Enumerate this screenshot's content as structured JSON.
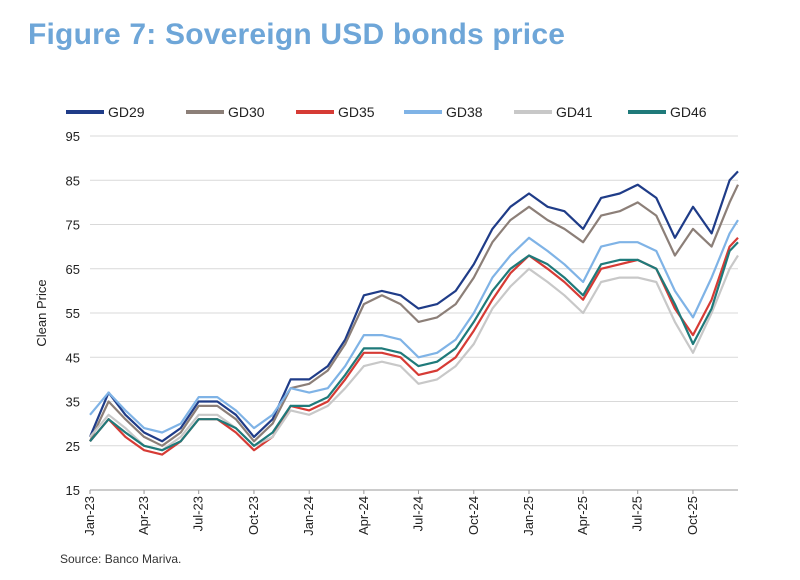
{
  "title": "Figure 7: Sovereign USD bonds price",
  "source": "Source: Banco Mariva.",
  "chart_data": {
    "type": "line",
    "ylabel": "Clean Price",
    "xlabel": "",
    "ylim": [
      15,
      95
    ],
    "yticks": [
      15,
      25,
      35,
      45,
      55,
      65,
      75,
      85,
      95
    ],
    "xlim": [
      "2023-01-01",
      "2025-12-15"
    ],
    "xticks": [
      {
        "date": "2023-01-01",
        "label": "Jan-23"
      },
      {
        "date": "2023-04-01",
        "label": "Apr-23"
      },
      {
        "date": "2023-07-01",
        "label": "Jul-23"
      },
      {
        "date": "2023-10-01",
        "label": "Oct-23"
      },
      {
        "date": "2024-01-01",
        "label": "Jan-24"
      },
      {
        "date": "2024-04-01",
        "label": "Apr-24"
      },
      {
        "date": "2024-07-01",
        "label": "Jul-24"
      },
      {
        "date": "2024-10-01",
        "label": "Oct-24"
      },
      {
        "date": "2025-01-01",
        "label": "Jan-25"
      },
      {
        "date": "2025-04-01",
        "label": "Apr-25"
      },
      {
        "date": "2025-07-01",
        "label": "Jul-25"
      },
      {
        "date": "2025-10-01",
        "label": "Oct-25"
      }
    ],
    "grid": "horizontal",
    "legend": "top",
    "series": [
      {
        "name": "GD29",
        "color": "#1f3c88",
        "points": [
          [
            "2023-01-01",
            27
          ],
          [
            "2023-02-01",
            37
          ],
          [
            "2023-03-01",
            32
          ],
          [
            "2023-04-01",
            28
          ],
          [
            "2023-05-01",
            26
          ],
          [
            "2023-06-01",
            29
          ],
          [
            "2023-07-01",
            35
          ],
          [
            "2023-08-01",
            35
          ],
          [
            "2023-09-01",
            32
          ],
          [
            "2023-10-01",
            27
          ],
          [
            "2023-11-01",
            31
          ],
          [
            "2023-12-01",
            40
          ],
          [
            "2024-01-01",
            40
          ],
          [
            "2024-02-01",
            43
          ],
          [
            "2024-03-01",
            49
          ],
          [
            "2024-04-01",
            59
          ],
          [
            "2024-05-01",
            60
          ],
          [
            "2024-06-01",
            59
          ],
          [
            "2024-07-01",
            56
          ],
          [
            "2024-08-01",
            57
          ],
          [
            "2024-09-01",
            60
          ],
          [
            "2024-10-01",
            66
          ],
          [
            "2024-11-01",
            74
          ],
          [
            "2024-12-01",
            79
          ],
          [
            "2025-01-01",
            82
          ],
          [
            "2025-02-01",
            79
          ],
          [
            "2025-03-01",
            78
          ],
          [
            "2025-04-01",
            74
          ],
          [
            "2025-05-01",
            81
          ],
          [
            "2025-06-01",
            82
          ],
          [
            "2025-07-01",
            84
          ],
          [
            "2025-08-01",
            81
          ],
          [
            "2025-09-01",
            72
          ],
          [
            "2025-10-01",
            79
          ],
          [
            "2025-11-01",
            73
          ],
          [
            "2025-12-01",
            85
          ],
          [
            "2025-12-15",
            87
          ]
        ]
      },
      {
        "name": "GD30",
        "color": "#8c7f78",
        "points": [
          [
            "2023-01-01",
            26
          ],
          [
            "2023-02-01",
            35
          ],
          [
            "2023-03-01",
            31
          ],
          [
            "2023-04-01",
            27
          ],
          [
            "2023-05-01",
            25
          ],
          [
            "2023-06-01",
            28
          ],
          [
            "2023-07-01",
            34
          ],
          [
            "2023-08-01",
            34
          ],
          [
            "2023-09-01",
            31
          ],
          [
            "2023-10-01",
            26
          ],
          [
            "2023-11-01",
            30
          ],
          [
            "2023-12-01",
            38
          ],
          [
            "2024-01-01",
            39
          ],
          [
            "2024-02-01",
            42
          ],
          [
            "2024-03-01",
            48
          ],
          [
            "2024-04-01",
            57
          ],
          [
            "2024-05-01",
            59
          ],
          [
            "2024-06-01",
            57
          ],
          [
            "2024-07-01",
            53
          ],
          [
            "2024-08-01",
            54
          ],
          [
            "2024-09-01",
            57
          ],
          [
            "2024-10-01",
            63
          ],
          [
            "2024-11-01",
            71
          ],
          [
            "2024-12-01",
            76
          ],
          [
            "2025-01-01",
            79
          ],
          [
            "2025-02-01",
            76
          ],
          [
            "2025-03-01",
            74
          ],
          [
            "2025-04-01",
            71
          ],
          [
            "2025-05-01",
            77
          ],
          [
            "2025-06-01",
            78
          ],
          [
            "2025-07-01",
            80
          ],
          [
            "2025-08-01",
            77
          ],
          [
            "2025-09-01",
            68
          ],
          [
            "2025-10-01",
            74
          ],
          [
            "2025-11-01",
            70
          ],
          [
            "2025-12-01",
            80
          ],
          [
            "2025-12-15",
            84
          ]
        ]
      },
      {
        "name": "GD35",
        "color": "#d63b35",
        "points": [
          [
            "2023-01-01",
            26
          ],
          [
            "2023-02-01",
            31
          ],
          [
            "2023-03-01",
            27
          ],
          [
            "2023-04-01",
            24
          ],
          [
            "2023-05-01",
            23
          ],
          [
            "2023-06-01",
            26
          ],
          [
            "2023-07-01",
            31
          ],
          [
            "2023-08-01",
            31
          ],
          [
            "2023-09-01",
            28
          ],
          [
            "2023-10-01",
            24
          ],
          [
            "2023-11-01",
            27
          ],
          [
            "2023-12-01",
            34
          ],
          [
            "2024-01-01",
            33
          ],
          [
            "2024-02-01",
            35
          ],
          [
            "2024-03-01",
            40
          ],
          [
            "2024-04-01",
            46
          ],
          [
            "2024-05-01",
            46
          ],
          [
            "2024-06-01",
            45
          ],
          [
            "2024-07-01",
            41
          ],
          [
            "2024-08-01",
            42
          ],
          [
            "2024-09-01",
            45
          ],
          [
            "2024-10-01",
            51
          ],
          [
            "2024-11-01",
            58
          ],
          [
            "2024-12-01",
            64
          ],
          [
            "2025-01-01",
            68
          ],
          [
            "2025-02-01",
            65
          ],
          [
            "2025-03-01",
            62
          ],
          [
            "2025-04-01",
            58
          ],
          [
            "2025-05-01",
            65
          ],
          [
            "2025-06-01",
            66
          ],
          [
            "2025-07-01",
            67
          ],
          [
            "2025-08-01",
            65
          ],
          [
            "2025-09-01",
            56
          ],
          [
            "2025-10-01",
            50
          ],
          [
            "2025-11-01",
            58
          ],
          [
            "2025-12-01",
            70
          ],
          [
            "2025-12-15",
            72
          ]
        ]
      },
      {
        "name": "GD38",
        "color": "#7fb3e6",
        "points": [
          [
            "2023-01-01",
            32
          ],
          [
            "2023-02-01",
            37
          ],
          [
            "2023-03-01",
            33
          ],
          [
            "2023-04-01",
            29
          ],
          [
            "2023-05-01",
            28
          ],
          [
            "2023-06-01",
            30
          ],
          [
            "2023-07-01",
            36
          ],
          [
            "2023-08-01",
            36
          ],
          [
            "2023-09-01",
            33
          ],
          [
            "2023-10-01",
            29
          ],
          [
            "2023-11-01",
            32
          ],
          [
            "2023-12-01",
            38
          ],
          [
            "2024-01-01",
            37
          ],
          [
            "2024-02-01",
            38
          ],
          [
            "2024-03-01",
            43
          ],
          [
            "2024-04-01",
            50
          ],
          [
            "2024-05-01",
            50
          ],
          [
            "2024-06-01",
            49
          ],
          [
            "2024-07-01",
            45
          ],
          [
            "2024-08-01",
            46
          ],
          [
            "2024-09-01",
            49
          ],
          [
            "2024-10-01",
            55
          ],
          [
            "2024-11-01",
            63
          ],
          [
            "2024-12-01",
            68
          ],
          [
            "2025-01-01",
            72
          ],
          [
            "2025-02-01",
            69
          ],
          [
            "2025-03-01",
            66
          ],
          [
            "2025-04-01",
            62
          ],
          [
            "2025-05-01",
            70
          ],
          [
            "2025-06-01",
            71
          ],
          [
            "2025-07-01",
            71
          ],
          [
            "2025-08-01",
            69
          ],
          [
            "2025-09-01",
            60
          ],
          [
            "2025-10-01",
            54
          ],
          [
            "2025-11-01",
            63
          ],
          [
            "2025-12-01",
            73
          ],
          [
            "2025-12-15",
            76
          ]
        ]
      },
      {
        "name": "GD41",
        "color": "#c8c8c8",
        "points": [
          [
            "2023-01-01",
            27
          ],
          [
            "2023-02-01",
            32
          ],
          [
            "2023-03-01",
            29
          ],
          [
            "2023-04-01",
            25
          ],
          [
            "2023-05-01",
            24
          ],
          [
            "2023-06-01",
            27
          ],
          [
            "2023-07-01",
            32
          ],
          [
            "2023-08-01",
            32
          ],
          [
            "2023-09-01",
            29
          ],
          [
            "2023-10-01",
            25
          ],
          [
            "2023-11-01",
            27
          ],
          [
            "2023-12-01",
            33
          ],
          [
            "2024-01-01",
            32
          ],
          [
            "2024-02-01",
            34
          ],
          [
            "2024-03-01",
            38
          ],
          [
            "2024-04-01",
            43
          ],
          [
            "2024-05-01",
            44
          ],
          [
            "2024-06-01",
            43
          ],
          [
            "2024-07-01",
            39
          ],
          [
            "2024-08-01",
            40
          ],
          [
            "2024-09-01",
            43
          ],
          [
            "2024-10-01",
            48
          ],
          [
            "2024-11-01",
            56
          ],
          [
            "2024-12-01",
            61
          ],
          [
            "2025-01-01",
            65
          ],
          [
            "2025-02-01",
            62
          ],
          [
            "2025-03-01",
            59
          ],
          [
            "2025-04-01",
            55
          ],
          [
            "2025-05-01",
            62
          ],
          [
            "2025-06-01",
            63
          ],
          [
            "2025-07-01",
            63
          ],
          [
            "2025-08-01",
            62
          ],
          [
            "2025-09-01",
            53
          ],
          [
            "2025-10-01",
            46
          ],
          [
            "2025-11-01",
            55
          ],
          [
            "2025-12-01",
            65
          ],
          [
            "2025-12-15",
            68
          ]
        ]
      },
      {
        "name": "GD46",
        "color": "#1f7a7a",
        "points": [
          [
            "2023-01-01",
            26
          ],
          [
            "2023-02-01",
            31
          ],
          [
            "2023-03-01",
            28
          ],
          [
            "2023-04-01",
            25
          ],
          [
            "2023-05-01",
            24
          ],
          [
            "2023-06-01",
            26
          ],
          [
            "2023-07-01",
            31
          ],
          [
            "2023-08-01",
            31
          ],
          [
            "2023-09-01",
            29
          ],
          [
            "2023-10-01",
            25
          ],
          [
            "2023-11-01",
            28
          ],
          [
            "2023-12-01",
            34
          ],
          [
            "2024-01-01",
            34
          ],
          [
            "2024-02-01",
            36
          ],
          [
            "2024-03-01",
            41
          ],
          [
            "2024-04-01",
            47
          ],
          [
            "2024-05-01",
            47
          ],
          [
            "2024-06-01",
            46
          ],
          [
            "2024-07-01",
            43
          ],
          [
            "2024-08-01",
            44
          ],
          [
            "2024-09-01",
            47
          ],
          [
            "2024-10-01",
            53
          ],
          [
            "2024-11-01",
            60
          ],
          [
            "2024-12-01",
            65
          ],
          [
            "2025-01-01",
            68
          ],
          [
            "2025-02-01",
            66
          ],
          [
            "2025-03-01",
            63
          ],
          [
            "2025-04-01",
            59
          ],
          [
            "2025-05-01",
            66
          ],
          [
            "2025-06-01",
            67
          ],
          [
            "2025-07-01",
            67
          ],
          [
            "2025-08-01",
            65
          ],
          [
            "2025-09-01",
            57
          ],
          [
            "2025-10-01",
            48
          ],
          [
            "2025-11-01",
            56
          ],
          [
            "2025-12-01",
            69
          ],
          [
            "2025-12-15",
            71
          ]
        ]
      }
    ]
  }
}
